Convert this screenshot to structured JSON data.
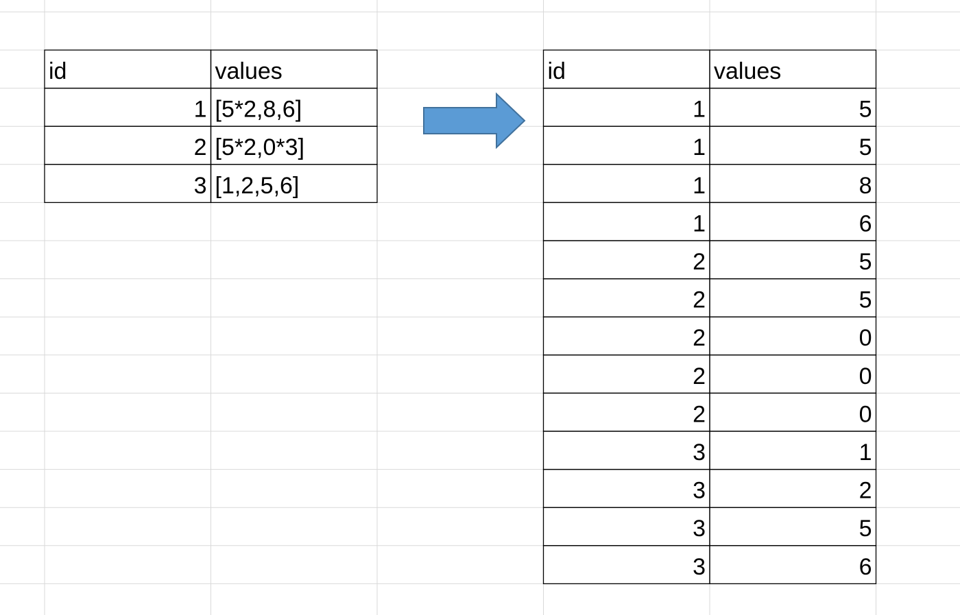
{
  "left_table": {
    "header": [
      "id",
      "values"
    ],
    "rows": [
      [
        1,
        "[5*2,8,6]"
      ],
      [
        2,
        "[5*2,0*3]"
      ],
      [
        3,
        "[1,2,5,6]"
      ]
    ]
  },
  "right_table": {
    "header": [
      "id",
      "values"
    ],
    "rows": [
      [
        1,
        5
      ],
      [
        1,
        5
      ],
      [
        1,
        8
      ],
      [
        1,
        6
      ],
      [
        2,
        5
      ],
      [
        2,
        5
      ],
      [
        2,
        0
      ],
      [
        2,
        0
      ],
      [
        2,
        0
      ],
      [
        3,
        1
      ],
      [
        3,
        2
      ],
      [
        3,
        5
      ],
      [
        3,
        6
      ]
    ]
  }
}
